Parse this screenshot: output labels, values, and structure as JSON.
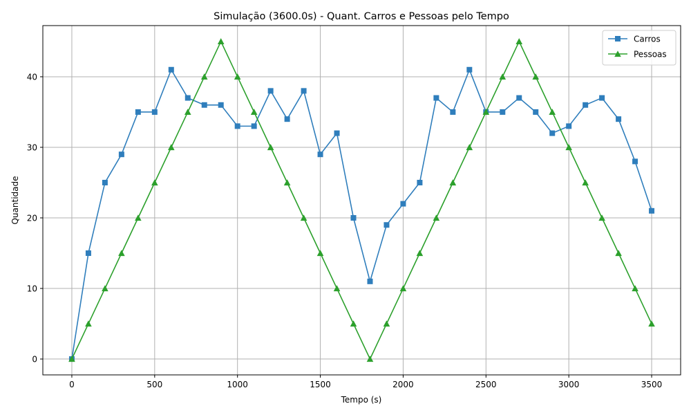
{
  "chart_data": {
    "type": "line",
    "title": "Simulação (3600.0s) - Quant. Carros e Pessoas pelo Tempo",
    "xlabel": "Tempo (s)",
    "ylabel": "Quantidade",
    "xlim": [
      -175,
      3675
    ],
    "ylim": [
      -2.25,
      47.25
    ],
    "xticks": [
      0,
      500,
      1000,
      1500,
      2000,
      2500,
      3000,
      3500
    ],
    "yticks": [
      0,
      10,
      20,
      30,
      40
    ],
    "grid": true,
    "legend_position": "top-right",
    "x": [
      0,
      100,
      200,
      300,
      400,
      500,
      600,
      700,
      800,
      900,
      1000,
      1100,
      1200,
      1300,
      1400,
      1500,
      1600,
      1700,
      1800,
      1900,
      2000,
      2100,
      2200,
      2300,
      2400,
      2500,
      2600,
      2700,
      2800,
      2900,
      3000,
      3100,
      3200,
      3300,
      3400,
      3500
    ],
    "series": [
      {
        "name": "Carros",
        "color": "#2f7ebc",
        "marker": "square",
        "values": [
          0,
          15,
          25,
          29,
          35,
          35,
          41,
          37,
          36,
          36,
          33,
          33,
          38,
          34,
          38,
          29,
          32,
          20,
          11,
          19,
          22,
          25,
          37,
          35,
          41,
          35,
          35,
          37,
          35,
          32,
          33,
          36,
          37,
          34,
          28,
          21
        ]
      },
      {
        "name": "Pessoas",
        "color": "#2ca02c",
        "marker": "triangle",
        "values": [
          0,
          5,
          10,
          15,
          20,
          25,
          30,
          35,
          40,
          45,
          40,
          35,
          30,
          25,
          20,
          15,
          10,
          5,
          0,
          5,
          10,
          15,
          20,
          25,
          30,
          35,
          40,
          45,
          40,
          35,
          30,
          25,
          20,
          15,
          10,
          5
        ]
      }
    ]
  }
}
